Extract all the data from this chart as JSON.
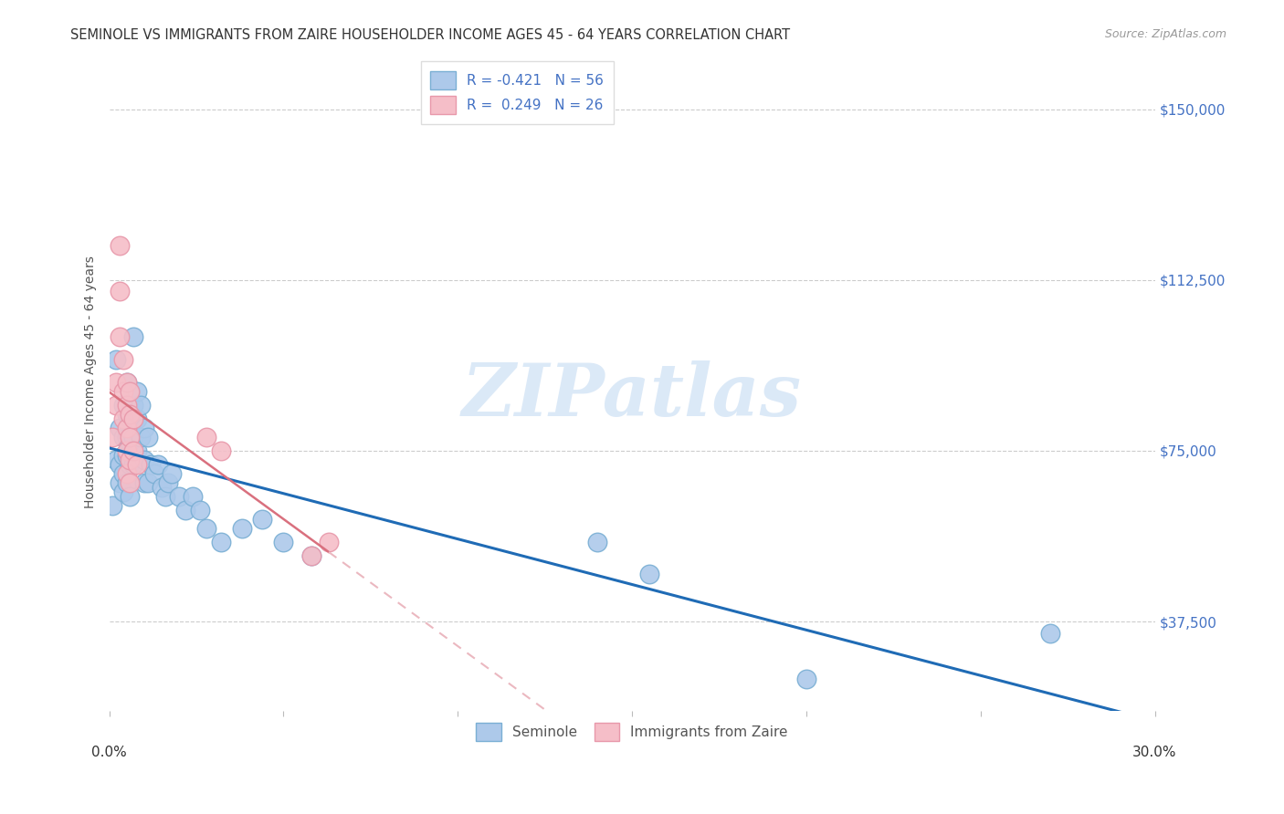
{
  "title": "SEMINOLE VS IMMIGRANTS FROM ZAIRE HOUSEHOLDER INCOME AGES 45 - 64 YEARS CORRELATION CHART",
  "source": "Source: ZipAtlas.com",
  "ylabel": "Householder Income Ages 45 - 64 years",
  "ytick_labels": [
    "$37,500",
    "$75,000",
    "$112,500",
    "$150,000"
  ],
  "ytick_values": [
    37500,
    75000,
    112500,
    150000
  ],
  "ylim": [
    18000,
    162000
  ],
  "xlim": [
    0.0,
    0.3
  ],
  "legend_line1": "R = -0.421   N = 56",
  "legend_line2": "R =  0.249   N = 26",
  "seminole_label": "Seminole",
  "zaire_label": "Immigrants from Zaire",
  "seminole_color": "#adc9ea",
  "seminole_edge": "#7aafd4",
  "zaire_color": "#f5bec8",
  "zaire_edge": "#e898aa",
  "trendline_seminole_color": "#1f6bb5",
  "trendline_zaire_solid_color": "#d9707e",
  "trendline_zaire_dash_color": "#ebb8c0",
  "watermark_color": "#cde0f4",
  "seminole_x": [
    0.001,
    0.002,
    0.002,
    0.003,
    0.003,
    0.003,
    0.004,
    0.004,
    0.004,
    0.004,
    0.004,
    0.005,
    0.005,
    0.005,
    0.005,
    0.005,
    0.006,
    0.006,
    0.006,
    0.006,
    0.006,
    0.007,
    0.007,
    0.007,
    0.007,
    0.008,
    0.008,
    0.008,
    0.009,
    0.009,
    0.01,
    0.01,
    0.01,
    0.011,
    0.011,
    0.012,
    0.013,
    0.014,
    0.015,
    0.016,
    0.017,
    0.018,
    0.02,
    0.022,
    0.024,
    0.026,
    0.028,
    0.032,
    0.038,
    0.044,
    0.05,
    0.058,
    0.14,
    0.155,
    0.2,
    0.27
  ],
  "seminole_y": [
    63000,
    95000,
    73000,
    80000,
    72000,
    68000,
    85000,
    78000,
    74000,
    70000,
    66000,
    90000,
    83000,
    78000,
    74000,
    68000,
    88000,
    82000,
    77000,
    72000,
    65000,
    100000,
    85000,
    78000,
    72000,
    88000,
    82000,
    75000,
    85000,
    78000,
    80000,
    73000,
    68000,
    78000,
    68000,
    72000,
    70000,
    72000,
    67000,
    65000,
    68000,
    70000,
    65000,
    62000,
    65000,
    62000,
    58000,
    55000,
    58000,
    60000,
    55000,
    52000,
    55000,
    48000,
    25000,
    35000
  ],
  "zaire_x": [
    0.001,
    0.002,
    0.002,
    0.003,
    0.003,
    0.003,
    0.004,
    0.004,
    0.004,
    0.005,
    0.005,
    0.005,
    0.005,
    0.005,
    0.006,
    0.006,
    0.006,
    0.006,
    0.006,
    0.007,
    0.007,
    0.008,
    0.058,
    0.063,
    0.028,
    0.032
  ],
  "zaire_y": [
    78000,
    90000,
    85000,
    100000,
    120000,
    110000,
    95000,
    88000,
    82000,
    90000,
    85000,
    80000,
    75000,
    70000,
    88000,
    83000,
    78000,
    73000,
    68000,
    82000,
    75000,
    72000,
    52000,
    55000,
    78000,
    75000
  ]
}
